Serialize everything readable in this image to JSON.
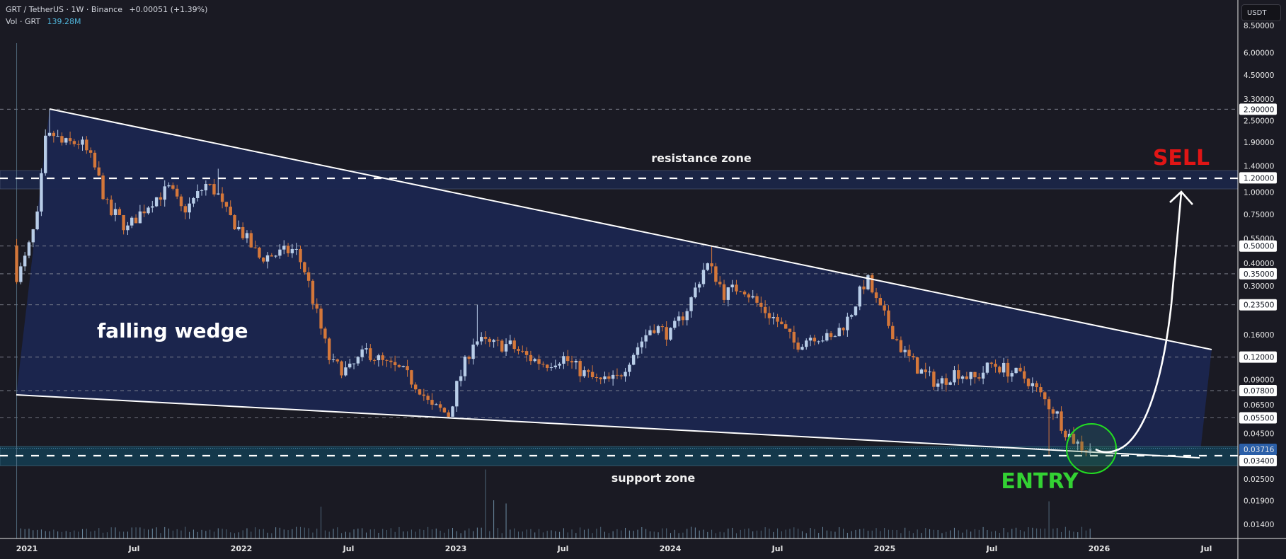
{
  "header": {
    "title": "GRT / TetherUS · 1W · Binance",
    "change": "+0.00051 (+1.39%)",
    "volume_label": "Vol · GRT",
    "volume_value": "139.28M"
  },
  "currency_button": "USDT",
  "colors": {
    "background": "#1a1a23",
    "up_candle": "#b8cde8",
    "down_candle": "#d4773a",
    "wedge_fill": "#1b2650",
    "support_zone_fill": "#143e52",
    "resistance_zone_fill": "#1b2545",
    "sell_text": "#e01515",
    "entry_text": "#33d133",
    "last_price_badge": "#2b5fa8"
  },
  "annotations": {
    "resistance_zone": "resistance zone",
    "support_zone": "support zone",
    "pattern": "falling wedge",
    "sell": "SELL",
    "entry": "ENTRY"
  },
  "chart_data": {
    "type": "candlestick",
    "interval": "1W",
    "y_scale": "log",
    "grid": false,
    "price_axis_labels": [
      "8.50000",
      "6.00000",
      "4.50000",
      "3.30000",
      "2.90000",
      "2.50000",
      "1.90000",
      "1.40000",
      "1.20000",
      "1.00000",
      "0.75000",
      "0.55000",
      "0.50000",
      "0.40000",
      "0.35000",
      "0.30000",
      "0.23500",
      "0.16000",
      "0.12000",
      "0.09000",
      "0.07800",
      "0.06500",
      "0.05500",
      "0.04500",
      "0.03716",
      "0.03400",
      "0.02500",
      "0.01900",
      "0.01400"
    ],
    "highlighted_levels": [
      "2.90000",
      "1.20000",
      "0.50000",
      "0.35000",
      "0.23500",
      "0.12000",
      "0.07800",
      "0.05500",
      "0.03400"
    ],
    "last_price": "0.03716",
    "time_axis_labels": [
      {
        "label": "2021",
        "date": "2021-01"
      },
      {
        "label": "Jul",
        "date": "2021-07"
      },
      {
        "label": "2022",
        "date": "2022-01"
      },
      {
        "label": "Jul",
        "date": "2022-07"
      },
      {
        "label": "2023",
        "date": "2023-01"
      },
      {
        "label": "Jul",
        "date": "2023-07"
      },
      {
        "label": "2024",
        "date": "2024-01"
      },
      {
        "label": "Jul",
        "date": "2024-07"
      },
      {
        "label": "2025",
        "date": "2025-01"
      },
      {
        "label": "Jul",
        "date": "2025-07"
      },
      {
        "label": "2026",
        "date": "2026-01"
      },
      {
        "label": "Jul",
        "date": "2026-07"
      }
    ],
    "resistance_level": 1.2,
    "support_level": 0.034,
    "close_path": [
      [
        "2020-12",
        0.6
      ],
      [
        "2020-12-15",
        0.33
      ],
      [
        "2021-01",
        0.45
      ],
      [
        "2021-01-20",
        0.75
      ],
      [
        "2021-02",
        1.9
      ],
      [
        "2021-02-15",
        2.1
      ],
      [
        "2021-03",
        1.85
      ],
      [
        "2021-04",
        1.9
      ],
      [
        "2021-04-20",
        1.5
      ],
      [
        "2021-05",
        1.2
      ],
      [
        "2021-05-20",
        0.75
      ],
      [
        "2021-06",
        0.75
      ],
      [
        "2021-06-20",
        0.62
      ],
      [
        "2021-07",
        0.7
      ],
      [
        "2021-08",
        0.9
      ],
      [
        "2021-09",
        1.05
      ],
      [
        "2021-09-20",
        0.8
      ],
      [
        "2021-10",
        0.82
      ],
      [
        "2021-11",
        1.1
      ],
      [
        "2021-11-20",
        1.0
      ],
      [
        "2021-12",
        0.8
      ],
      [
        "2022-01",
        0.6
      ],
      [
        "2022-02",
        0.43
      ],
      [
        "2022-03",
        0.45
      ],
      [
        "2022-04",
        0.48
      ],
      [
        "2022-04-20",
        0.35
      ],
      [
        "2022-05",
        0.25
      ],
      [
        "2022-05-20",
        0.15
      ],
      [
        "2022-06",
        0.11
      ],
      [
        "2022-07",
        0.1
      ],
      [
        "2022-08",
        0.13
      ],
      [
        "2022-09",
        0.11
      ],
      [
        "2022-10",
        0.1
      ],
      [
        "2022-11",
        0.08
      ],
      [
        "2022-11-20",
        0.062
      ],
      [
        "2022-12",
        0.062
      ],
      [
        "2022-12-20",
        0.057
      ],
      [
        "2023-01",
        0.08
      ],
      [
        "2023-02",
        0.15
      ],
      [
        "2023-03",
        0.14
      ],
      [
        "2023-04",
        0.14
      ],
      [
        "2023-05",
        0.12
      ],
      [
        "2023-06",
        0.11
      ],
      [
        "2023-07",
        0.12
      ],
      [
        "2023-08",
        0.1
      ],
      [
        "2023-09",
        0.087
      ],
      [
        "2023-10",
        0.09
      ],
      [
        "2023-11",
        0.13
      ],
      [
        "2023-12",
        0.18
      ],
      [
        "2024-01",
        0.16
      ],
      [
        "2024-02",
        0.23
      ],
      [
        "2024-03",
        0.4
      ],
      [
        "2024-03-20",
        0.33
      ],
      [
        "2024-04",
        0.27
      ],
      [
        "2024-05",
        0.3
      ],
      [
        "2024-06",
        0.23
      ],
      [
        "2024-07",
        0.19
      ],
      [
        "2024-08",
        0.14
      ],
      [
        "2024-09",
        0.16
      ],
      [
        "2024-10",
        0.15
      ],
      [
        "2024-11",
        0.2
      ],
      [
        "2024-11-25",
        0.3
      ],
      [
        "2024-12",
        0.33
      ],
      [
        "2024-12-20",
        0.23
      ],
      [
        "2025-01",
        0.2
      ],
      [
        "2025-02",
        0.13
      ],
      [
        "2025-03",
        0.1
      ],
      [
        "2025-04",
        0.085
      ],
      [
        "2025-05",
        0.1
      ],
      [
        "2025-06",
        0.09
      ],
      [
        "2025-07",
        0.11
      ],
      [
        "2025-08",
        0.1
      ],
      [
        "2025-09",
        0.09
      ],
      [
        "2025-10",
        0.068
      ],
      [
        "2025-10-20",
        0.058
      ],
      [
        "2025-11",
        0.048
      ],
      [
        "2025-11-20",
        0.041
      ],
      [
        "2025-12",
        0.038
      ],
      [
        "2025-12-22",
        0.03716
      ]
    ],
    "notable_wicks": [
      {
        "date": "2021-02-10",
        "high": 2.9
      },
      {
        "date": "2021-11-20",
        "high": 1.35
      },
      {
        "date": "2023-02-10",
        "high": 0.235
      },
      {
        "date": "2024-03-10",
        "high": 0.5
      },
      {
        "date": "2024-12-05",
        "high": 0.35
      },
      {
        "date": "2025-10-10",
        "low": 0.034
      }
    ],
    "volume_spikes": [
      {
        "date": "2020-12-15",
        "relative": 1.0
      },
      {
        "date": "2023-02-20",
        "relative": 0.65
      },
      {
        "date": "2023-03-05",
        "relative": 0.36
      },
      {
        "date": "2023-03-25",
        "relative": 0.33
      },
      {
        "date": "2022-05-15",
        "relative": 0.3
      },
      {
        "date": "2025-10-10",
        "relative": 0.35
      }
    ]
  }
}
